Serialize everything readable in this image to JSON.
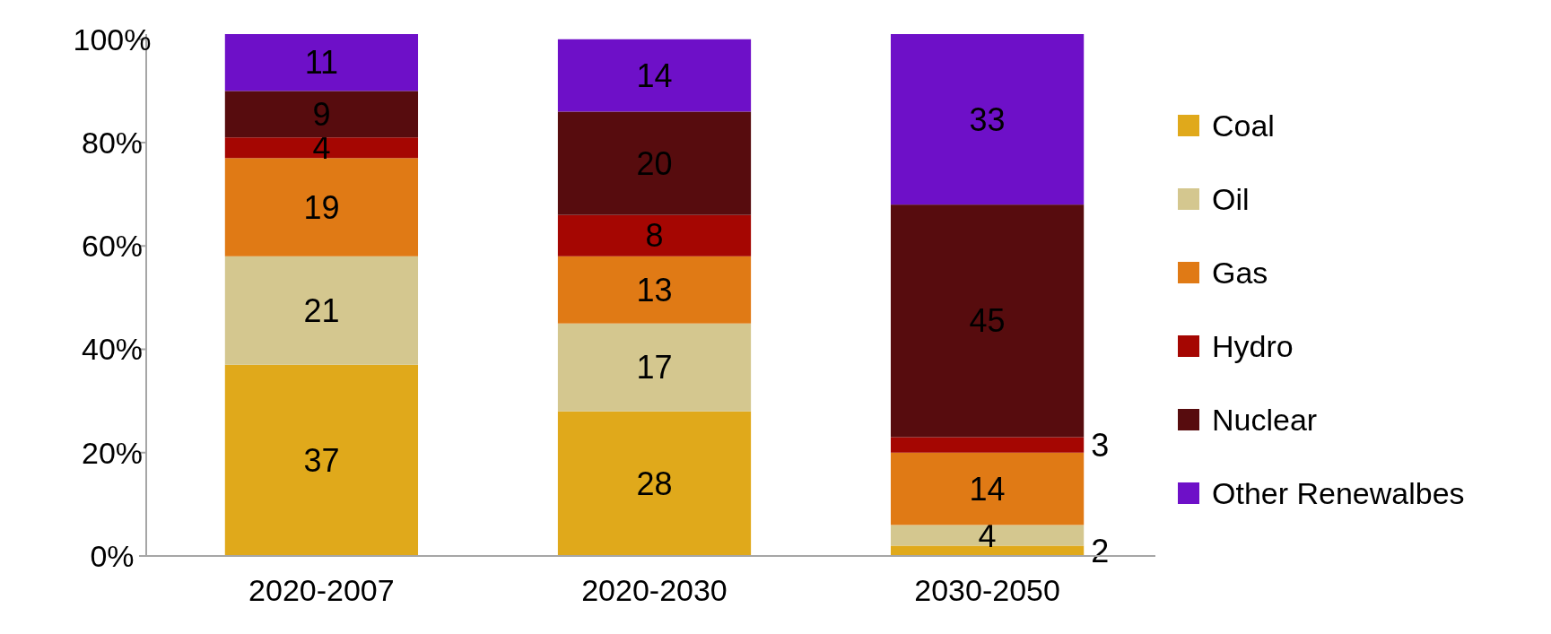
{
  "chart_data": {
    "type": "bar",
    "stacked": true,
    "categories": [
      "2020-2007",
      "2020-2030",
      "2030-2050"
    ],
    "series": [
      {
        "name": "Coal",
        "color": "#e0a91b",
        "values": [
          37,
          28,
          2
        ]
      },
      {
        "name": "Oil",
        "color": "#d4c78f",
        "values": [
          21,
          17,
          4
        ]
      },
      {
        "name": "Gas",
        "color": "#e07a15",
        "values": [
          19,
          13,
          14
        ]
      },
      {
        "name": "Hydro",
        "color": "#a50602",
        "values": [
          4,
          8,
          3
        ]
      },
      {
        "name": "Nuclear",
        "color": "#570c0e",
        "values": [
          9,
          20,
          45
        ]
      },
      {
        "name": "Other Renewalbes",
        "color": "#6e10c8",
        "values": [
          11,
          14,
          33
        ]
      }
    ],
    "ylim": [
      0,
      101
    ],
    "yticks": [
      {
        "value": 0,
        "label": "0%"
      },
      {
        "value": 20,
        "label": "20%"
      },
      {
        "value": 40,
        "label": "40%"
      },
      {
        "value": 60,
        "label": "60%"
      },
      {
        "value": 80,
        "label": "80%"
      },
      {
        "value": 100,
        "label": "100%"
      }
    ],
    "data_labels": true,
    "legend": "right",
    "grid": false
  }
}
